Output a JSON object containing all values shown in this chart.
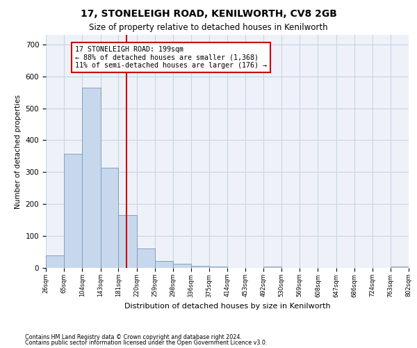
{
  "title": "17, STONELEIGH ROAD, KENILWORTH, CV8 2GB",
  "subtitle": "Size of property relative to detached houses in Kenilworth",
  "xlabel": "Distribution of detached houses by size in Kenilworth",
  "ylabel": "Number of detached properties",
  "footnote1": "Contains HM Land Registry data © Crown copyright and database right 2024.",
  "footnote2": "Contains public sector information licensed under the Open Government Licence v3.0.",
  "bar_color": "#c8d8ec",
  "bar_edge_color": "#7098b8",
  "red_line_color": "#cc0000",
  "red_box_color": "#cc0000",
  "grid_color": "#c8d4e4",
  "background_color": "#eef2f8",
  "annotation_line1": "17 STONELEIGH ROAD: 199sqm",
  "annotation_line2": "← 88% of detached houses are smaller (1,368)",
  "annotation_line3": "11% of semi-detached houses are larger (176) →",
  "property_size": 199,
  "bin_edges": [
    26,
    65,
    104,
    143,
    181,
    220,
    259,
    298,
    336,
    375,
    414,
    453,
    492,
    530,
    569,
    608,
    647,
    686,
    724,
    763,
    802
  ],
  "bar_heights": [
    40,
    357,
    565,
    313,
    165,
    62,
    22,
    12,
    7,
    5,
    0,
    0,
    5,
    0,
    0,
    0,
    0,
    0,
    0,
    5
  ],
  "ylim": [
    0,
    730
  ],
  "yticks": [
    0,
    100,
    200,
    300,
    400,
    500,
    600,
    700
  ]
}
